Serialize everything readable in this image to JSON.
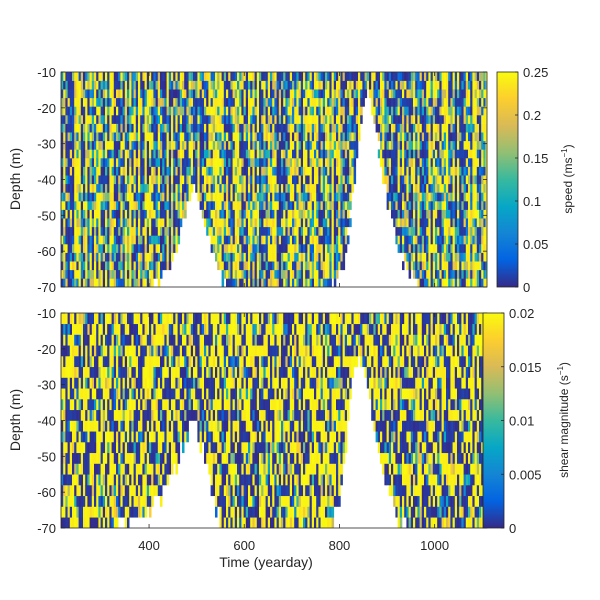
{
  "figure": {
    "xlabel": "Time (yearday)"
  },
  "chart_data": [
    {
      "type": "heatmap",
      "panel": "top",
      "title": "",
      "xlabel": "",
      "ylabel": "Depth (m)",
      "xlim": [
        215,
        1110
      ],
      "ylim": [
        -70,
        -10
      ],
      "x_ticks": [
        400,
        600,
        800,
        1000
      ],
      "y_ticks": [
        -10,
        -20,
        -30,
        -40,
        -50,
        -60,
        -70
      ],
      "x_tick_labels_shown": false,
      "colorbar": {
        "label": "speed (ms",
        "label_sup": "−1",
        "label_end": ")",
        "range": [
          0,
          0.25
        ],
        "ticks": [
          0,
          0.05,
          0.1,
          0.15,
          0.2,
          0.25
        ],
        "tick_labels": [
          "0",
          "0.05",
          "0.1",
          "0.15",
          "0.2",
          "0.25"
        ],
        "colormap": "parula"
      },
      "data_coverage_shallowest_depth_by_yearday": [
        [
          215,
          -70
        ],
        [
          300,
          -70
        ],
        [
          400,
          -70
        ],
        [
          440,
          -66
        ],
        [
          460,
          -58
        ],
        [
          475,
          -48
        ],
        [
          490,
          -42
        ],
        [
          505,
          -48
        ],
        [
          520,
          -56
        ],
        [
          540,
          -64
        ],
        [
          560,
          -70
        ],
        [
          700,
          -70
        ],
        [
          780,
          -70
        ],
        [
          810,
          -62
        ],
        [
          830,
          -40
        ],
        [
          845,
          -22
        ],
        [
          860,
          -16
        ],
        [
          875,
          -26
        ],
        [
          890,
          -40
        ],
        [
          910,
          -54
        ],
        [
          935,
          -64
        ],
        [
          960,
          -70
        ],
        [
          1110,
          -70
        ]
      ],
      "value_distribution": "random, mostly saturated at 0 (dark blue) or 0.25 (yellow)"
    },
    {
      "type": "heatmap",
      "panel": "bottom",
      "title": "",
      "xlabel": "Time (yearday)",
      "ylabel": "Depth (m)",
      "xlim": [
        215,
        1110
      ],
      "ylim": [
        -70,
        -10
      ],
      "x_ticks": [
        400,
        600,
        800,
        1000
      ],
      "x_tick_labels": [
        "400",
        "600",
        "800",
        "1000"
      ],
      "y_ticks": [
        -10,
        -20,
        -30,
        -40,
        -50,
        -60,
        -70
      ],
      "colorbar": {
        "label": "shear magnitude (s",
        "label_sup": "−1",
        "label_end": ")",
        "range": [
          0,
          0.02
        ],
        "ticks": [
          0,
          0.005,
          0.01,
          0.015,
          0.02
        ],
        "tick_labels": [
          "0",
          "0.005",
          "0.01",
          "0.015",
          "0.02"
        ],
        "colormap": "parula"
      },
      "data_coverage_shallowest_depth_by_yearday": [
        [
          215,
          -70
        ],
        [
          330,
          -70
        ],
        [
          380,
          -68
        ],
        [
          420,
          -62
        ],
        [
          450,
          -55
        ],
        [
          470,
          -46
        ],
        [
          490,
          -40
        ],
        [
          510,
          -48
        ],
        [
          530,
          -60
        ],
        [
          550,
          -70
        ],
        [
          780,
          -70
        ],
        [
          800,
          -62
        ],
        [
          815,
          -44
        ],
        [
          825,
          -30
        ],
        [
          840,
          -20
        ],
        [
          855,
          -30
        ],
        [
          870,
          -44
        ],
        [
          890,
          -56
        ],
        [
          915,
          -66
        ],
        [
          940,
          -70
        ],
        [
          1110,
          -70
        ]
      ],
      "value_distribution": "random, mostly saturated at 0 (dark blue) or 0.02 (yellow)"
    }
  ]
}
